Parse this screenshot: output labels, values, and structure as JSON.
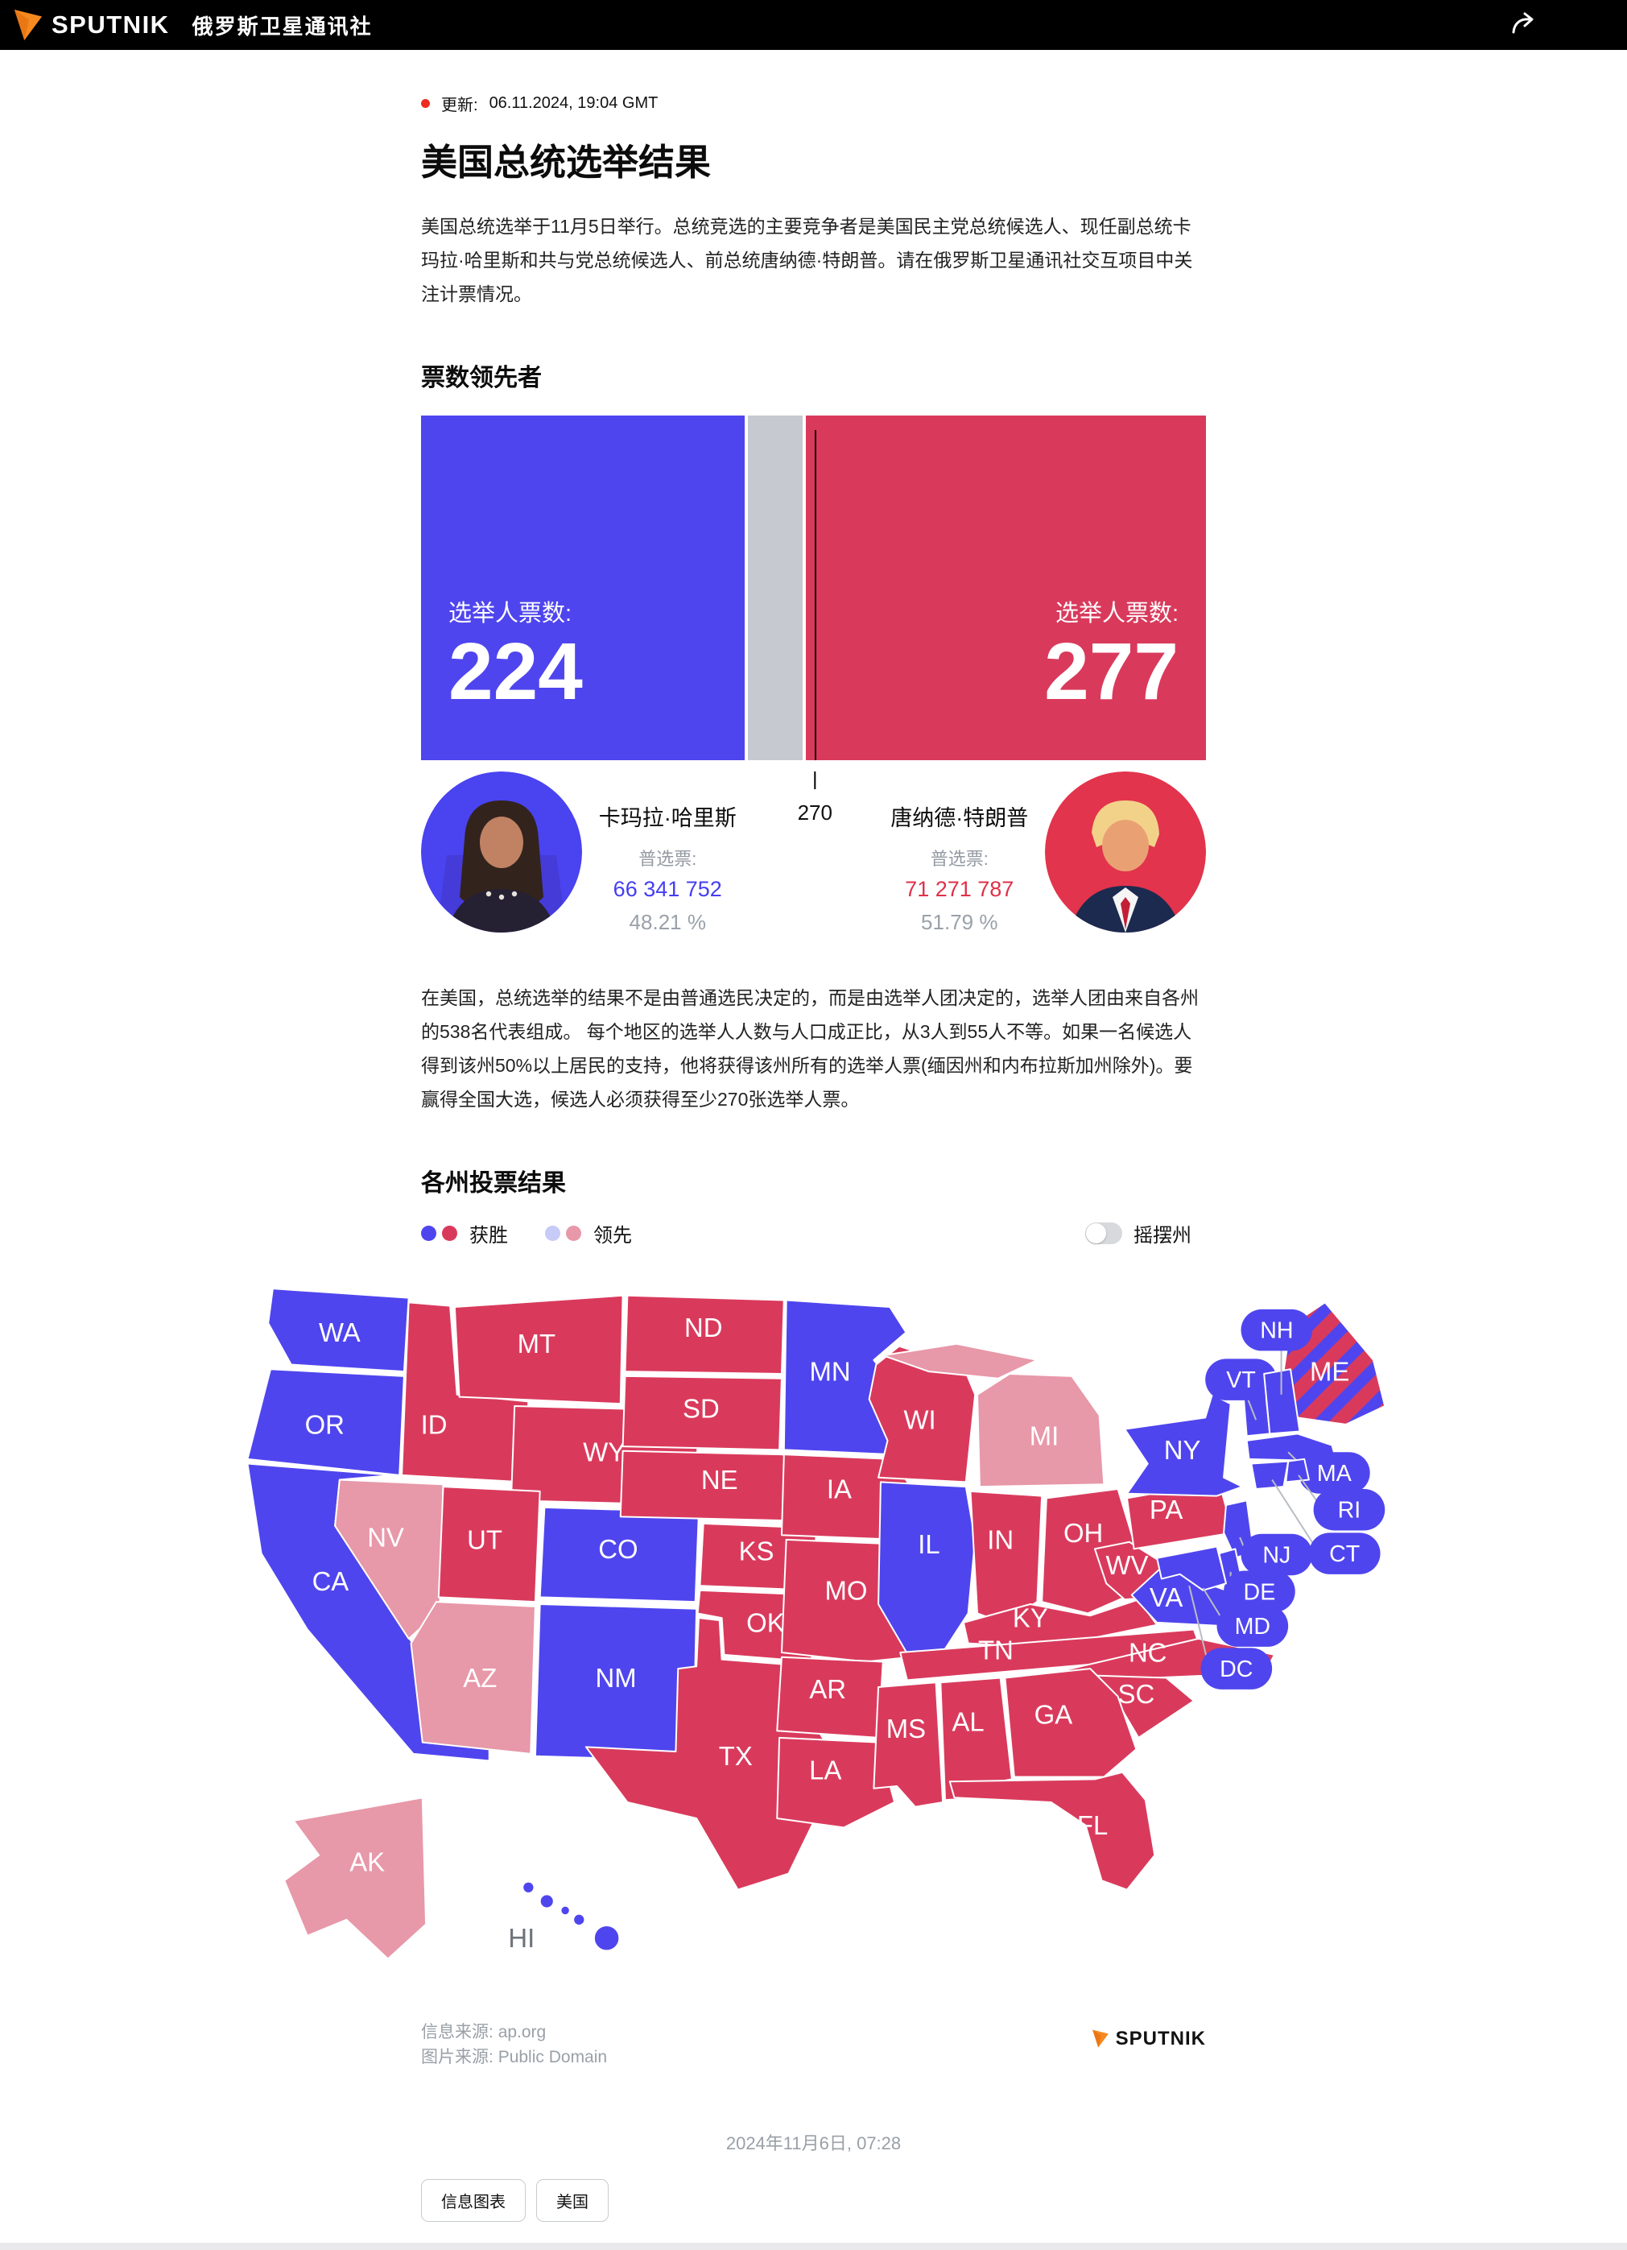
{
  "header": {
    "brand": "SPUTNIK",
    "brand_cn": "俄罗斯卫星通讯社"
  },
  "article": {
    "updated_label": "更新:",
    "updated_time": "06.11.2024, 19:04 GMT",
    "title": "美国总统选举结果",
    "intro": "美国总统选举于11月5日举行。总统竞选的主要竞争者是美国民主党总统候选人、现任副总统卡玛拉·哈里斯和共与党总统候选人、前总统唐纳德·特朗普。请在俄罗斯卫星通讯社交互项目中关注计票情况。",
    "body": "在美国，总统选举的结果不是由普通选民决定的，而是由选举人团决定的，选举人团由来自各州的538名代表组成。 每个地区的选举人人数与人口成正比，从3人到55人不等。如果一名候选人得到该州50%以上居民的支持，他将获得该州所有的选举人票(缅因州和内布拉斯加州除外)。要赢得全国大选，候选人必须获得至少270张选举人票。"
  },
  "leaders": {
    "section_title": "票数领先者",
    "electoral_label": "选举人票数:",
    "threshold": "270",
    "total_electors": 538,
    "harris": {
      "name": "卡玛拉·哈里斯",
      "electoral": "224",
      "popular_label": "普选票:",
      "popular": "66 341 752",
      "percent": "48.21 %"
    },
    "trump": {
      "name": "唐纳德·特朗普",
      "electoral": "277",
      "popular_label": "普选票:",
      "popular": "71 271 787",
      "percent": "51.79 %"
    }
  },
  "map_section": {
    "section_title": "各州投票结果",
    "legend_won": "获胜",
    "legend_leading": "领先",
    "legend_swing": "摇摆州"
  },
  "map": {
    "states": [
      {
        "id": "WA",
        "result": "dem_won"
      },
      {
        "id": "OR",
        "result": "dem_won"
      },
      {
        "id": "CA",
        "result": "dem_won"
      },
      {
        "id": "NV",
        "result": "rep_leading"
      },
      {
        "id": "ID",
        "result": "rep_won"
      },
      {
        "id": "MT",
        "result": "rep_won"
      },
      {
        "id": "WY",
        "result": "rep_won"
      },
      {
        "id": "UT",
        "result": "rep_won"
      },
      {
        "id": "CO",
        "result": "dem_won"
      },
      {
        "id": "AZ",
        "result": "rep_leading"
      },
      {
        "id": "NM",
        "result": "dem_won"
      },
      {
        "id": "ND",
        "result": "rep_won"
      },
      {
        "id": "SD",
        "result": "rep_won"
      },
      {
        "id": "NE",
        "result": "rep_won"
      },
      {
        "id": "KS",
        "result": "rep_won"
      },
      {
        "id": "OK",
        "result": "rep_won"
      },
      {
        "id": "TX",
        "result": "rep_won"
      },
      {
        "id": "MN",
        "result": "dem_won"
      },
      {
        "id": "IA",
        "result": "rep_won"
      },
      {
        "id": "MO",
        "result": "rep_won"
      },
      {
        "id": "AR",
        "result": "rep_won"
      },
      {
        "id": "LA",
        "result": "rep_won"
      },
      {
        "id": "WI",
        "result": "rep_won"
      },
      {
        "id": "MI",
        "result": "rep_leading"
      },
      {
        "id": "IL",
        "result": "dem_won"
      },
      {
        "id": "IN",
        "result": "rep_won"
      },
      {
        "id": "OH",
        "result": "rep_won"
      },
      {
        "id": "KY",
        "result": "rep_won"
      },
      {
        "id": "TN",
        "result": "rep_won"
      },
      {
        "id": "WV",
        "result": "rep_won"
      },
      {
        "id": "VA",
        "result": "dem_won"
      },
      {
        "id": "NC",
        "result": "rep_won"
      },
      {
        "id": "SC",
        "result": "rep_won"
      },
      {
        "id": "GA",
        "result": "rep_won"
      },
      {
        "id": "AL",
        "result": "rep_won"
      },
      {
        "id": "MS",
        "result": "rep_won"
      },
      {
        "id": "FL",
        "result": "rep_won"
      },
      {
        "id": "PA",
        "result": "rep_won"
      },
      {
        "id": "NY",
        "result": "dem_won"
      },
      {
        "id": "ME",
        "result": "split"
      },
      {
        "id": "VT",
        "result": "dem_won"
      },
      {
        "id": "NH",
        "result": "dem_won"
      },
      {
        "id": "MA",
        "result": "dem_won"
      },
      {
        "id": "RI",
        "result": "dem_won"
      },
      {
        "id": "CT",
        "result": "dem_won"
      },
      {
        "id": "NJ",
        "result": "dem_won"
      },
      {
        "id": "DE",
        "result": "dem_won"
      },
      {
        "id": "MD",
        "result": "dem_won"
      },
      {
        "id": "DC",
        "result": "dem_won"
      },
      {
        "id": "AK",
        "result": "rep_leading"
      },
      {
        "id": "HI",
        "result": "dem_won"
      }
    ]
  },
  "footer": {
    "source_label": "信息来源:",
    "source": "ap.org",
    "image_label": "图片来源:",
    "image_source": "Public Domain",
    "brand": "SPUTNIK",
    "date": "2024年11月6日, 07:28",
    "tags": [
      "信息图表",
      "美国"
    ]
  },
  "colors": {
    "dem_won": "#4f45ee",
    "rep_won": "#d93a5c",
    "rep_leading": "#e798a9",
    "dem_leading": "#c6cbf7",
    "unallocated_gray": "#c6c9cf",
    "accent_red_dot": "#ee2b1e",
    "harris_votes_blue": "#443ef0",
    "trump_votes_red": "#de3148"
  }
}
